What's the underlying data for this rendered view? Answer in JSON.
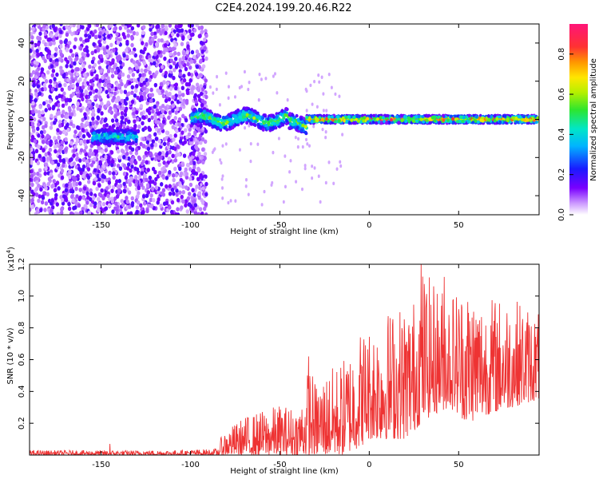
{
  "title": "C2E4.2024.199.20.46.R22",
  "colors": {
    "snr_line": "#ee3333",
    "background": "#ffffff",
    "axis": "#000000"
  },
  "chart_data": [
    {
      "type": "heatmap",
      "name": "spectrogram",
      "xlabel": "Height of straight line (km)",
      "ylabel": "Frequency (Hz)",
      "xlim": [
        -190,
        95
      ],
      "ylim": [
        -50,
        50
      ],
      "xticks": [
        -150,
        -100,
        -50,
        0,
        50
      ],
      "yticks": [
        -40,
        -20,
        0,
        20,
        40
      ],
      "colorbar": {
        "label": "Normalized spectral amplitude",
        "range": [
          0.0,
          0.95
        ],
        "ticks": [
          "0.0",
          "0.2",
          "0.4",
          "0.6",
          "0.8"
        ]
      },
      "features": [
        {
          "x_range": [
            -190,
            -91
          ],
          "freq_range": [
            -50,
            50
          ],
          "amplitude": "low (scattered noise)"
        },
        {
          "x_range": [
            -155,
            -130
          ],
          "freq_center": -9,
          "amplitude_peak": 0.4
        },
        {
          "x_range": [
            -100,
            -35
          ],
          "freq_center": 0,
          "amplitude_peak": 0.55
        },
        {
          "x_range": [
            -35,
            95
          ],
          "freq_center": 0,
          "amplitude_peak": 0.9
        }
      ]
    },
    {
      "type": "line",
      "name": "snr",
      "xlabel": "Height of straight line (km)",
      "ylabel": "SNR (10 * v/v)",
      "multiplier": "(x10",
      "multiplier_exp": "4",
      "multiplier_close": ")",
      "xlim": [
        -190,
        95
      ],
      "ylim": [
        0,
        1.2
      ],
      "xticks": [
        -150,
        -100,
        -50,
        0,
        50
      ],
      "yticks": [
        0.2,
        0.4,
        0.6,
        0.8,
        1.0,
        1.2
      ],
      "envelope": {
        "x": [
          -190,
          -150,
          -110,
          -85,
          -82,
          -70,
          -60,
          -50,
          -40,
          -35,
          -34,
          -30,
          -25,
          -15,
          -5,
          0,
          10,
          20,
          25,
          29,
          35,
          45,
          55,
          65,
          80,
          95
        ],
        "max": [
          0.03,
          0.03,
          0.03,
          0.04,
          0.14,
          0.24,
          0.28,
          0.32,
          0.3,
          0.45,
          0.62,
          0.45,
          0.52,
          0.6,
          0.8,
          0.82,
          0.92,
          0.97,
          1.0,
          1.2,
          1.1,
          1.05,
          1.1,
          1.0,
          1.0,
          0.9
        ],
        "min": [
          0.0,
          0.0,
          0.0,
          0.0,
          0.0,
          0.0,
          0.0,
          0.0,
          0.0,
          0.0,
          0.0,
          0.0,
          0.0,
          0.0,
          0.05,
          0.1,
          0.1,
          0.1,
          0.15,
          0.2,
          0.25,
          0.3,
          0.2,
          0.25,
          0.3,
          0.35
        ]
      },
      "peaks": [
        {
          "x": -145,
          "y": 0.07
        },
        {
          "x": -34,
          "y": 0.62
        },
        {
          "x": 29,
          "y": 1.2
        },
        {
          "x": 42,
          "y": 1.12
        }
      ]
    }
  ]
}
